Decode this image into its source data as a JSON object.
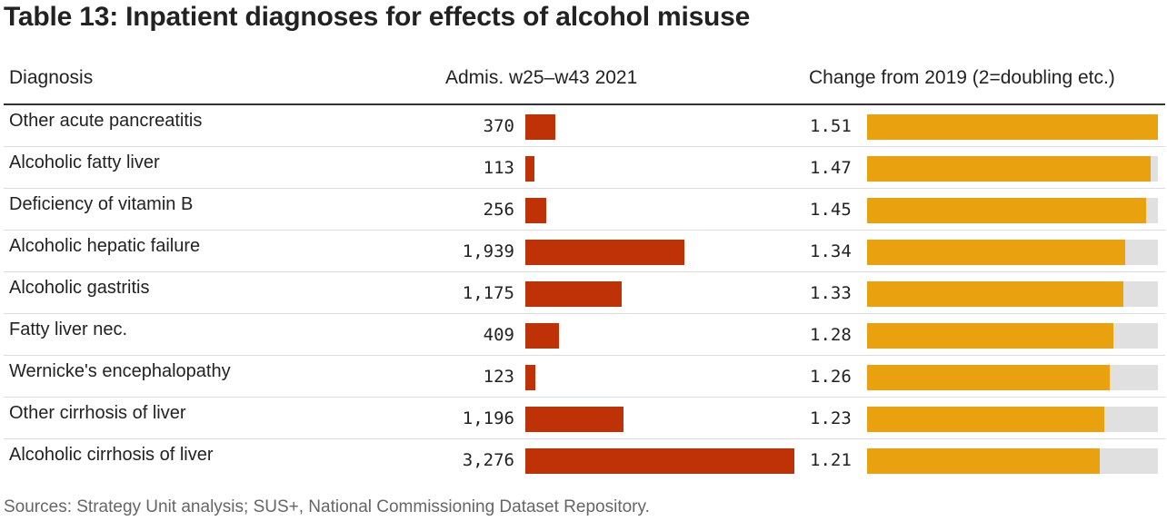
{
  "title": "Table 13: Inpatient diagnoses for effects of alcohol misuse",
  "headers": {
    "diagnosis": "Diagnosis",
    "admissions": "Admis. w25–w43 2021",
    "change": "Change from 2019 (2=doubling etc.)"
  },
  "source": "Sources: Strategy Unit analysis; SUS+, National Commissioning Dataset Repository.",
  "colors": {
    "admissions_bar": "#bf3208",
    "change_bar": "#e9a10f",
    "track": "#e0e0e0"
  },
  "chart_data": {
    "type": "table",
    "columns": [
      "Diagnosis",
      "Admis. w25–w43 2021",
      "Change from 2019 (2=doubling etc.)"
    ],
    "admissions_max": 3276,
    "change_max": 1.51,
    "rows": [
      {
        "diagnosis": "Other acute pancreatitis",
        "admissions": 370,
        "admissions_label": "370",
        "change": 1.51,
        "change_label": "1.51"
      },
      {
        "diagnosis": "Alcoholic fatty liver",
        "admissions": 113,
        "admissions_label": "113",
        "change": 1.47,
        "change_label": "1.47"
      },
      {
        "diagnosis": "Deficiency of vitamin B",
        "admissions": 256,
        "admissions_label": "256",
        "change": 1.45,
        "change_label": "1.45"
      },
      {
        "diagnosis": "Alcoholic hepatic failure",
        "admissions": 1939,
        "admissions_label": "1,939",
        "change": 1.34,
        "change_label": "1.34"
      },
      {
        "diagnosis": "Alcoholic gastritis",
        "admissions": 1175,
        "admissions_label": "1,175",
        "change": 1.33,
        "change_label": "1.33"
      },
      {
        "diagnosis": "Fatty liver nec.",
        "admissions": 409,
        "admissions_label": "409",
        "change": 1.28,
        "change_label": "1.28"
      },
      {
        "diagnosis": "Wernicke's encephalopathy",
        "admissions": 123,
        "admissions_label": "123",
        "change": 1.26,
        "change_label": "1.26"
      },
      {
        "diagnosis": "Other cirrhosis of liver",
        "admissions": 1196,
        "admissions_label": "1,196",
        "change": 1.23,
        "change_label": "1.23"
      },
      {
        "diagnosis": "Alcoholic cirrhosis of liver",
        "admissions": 3276,
        "admissions_label": "3,276",
        "change": 1.21,
        "change_label": "1.21"
      }
    ]
  }
}
